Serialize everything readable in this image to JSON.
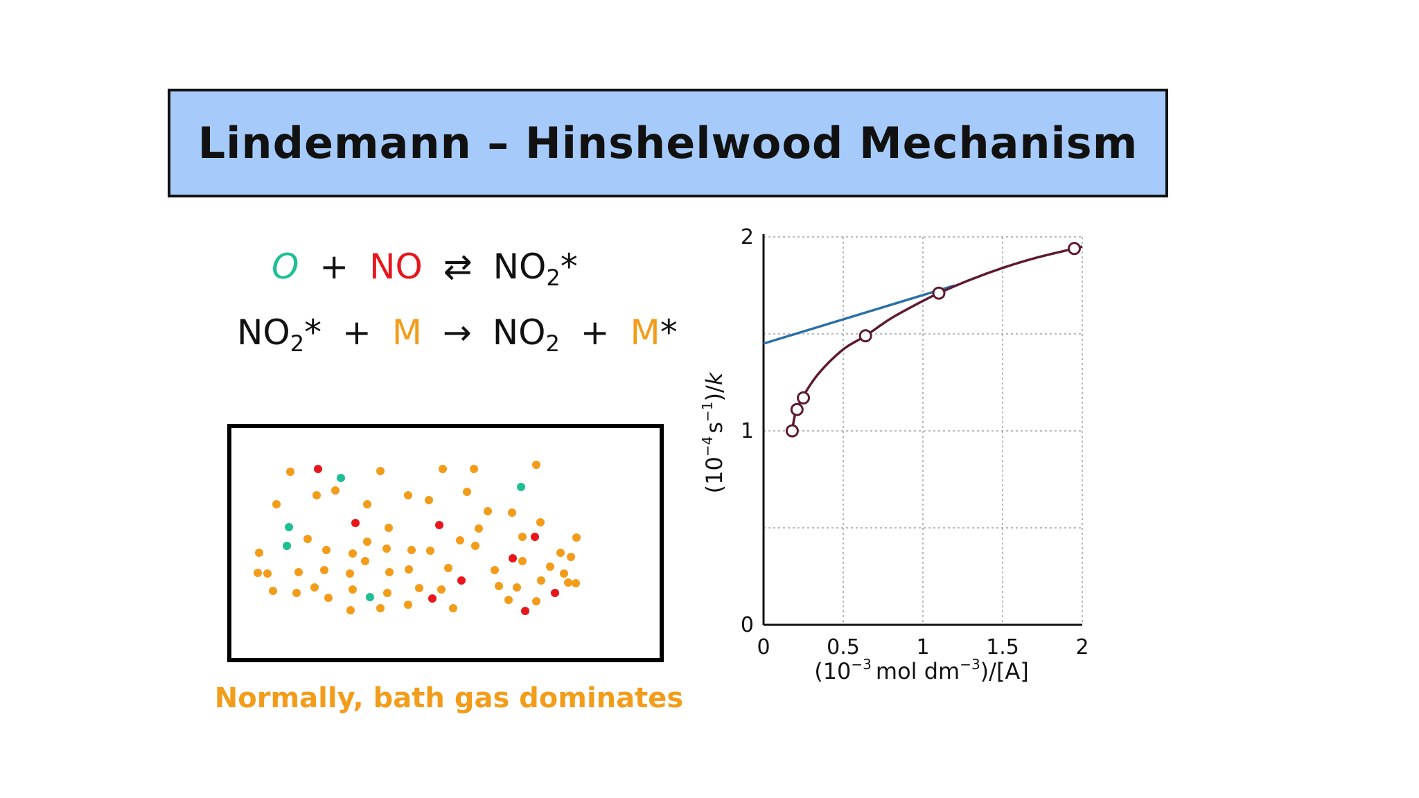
{
  "slide": {
    "title": "Lindemann – Hinshelwood Mechanism",
    "caption": "Normally, bath gas dominates"
  },
  "colors": {
    "title_bg": "#a6cbfa",
    "O": "#1fbf95",
    "NO": "#e8161b",
    "M": "#f39c1a",
    "text": "#111111",
    "curve": "#5e1a2e",
    "line": "#2a6fa8",
    "grid": "#9aa3ad"
  },
  "equations": {
    "eq1": {
      "O": "O",
      "plus1": "+",
      "NO": "NO",
      "arrow": "⇄",
      "product": "NO",
      "product_sub": "2",
      "product_sup": "*"
    },
    "eq2": {
      "reactant": "NO",
      "reactant_sub": "2",
      "reactant_sup": "*",
      "plus1": "+",
      "M": "M",
      "arrow": "→",
      "product": "NO",
      "product_sub": "2",
      "plus2": "+",
      "M2": "M",
      "M2_sup": "*"
    }
  },
  "particles": {
    "legend": {
      "O": "green",
      "NO": "red",
      "M": "orange"
    },
    "counts": {
      "O": 6,
      "NO": 11,
      "M": 66
    }
  },
  "chart_data": {
    "type": "scatter",
    "xlabel_parts": {
      "a": "(10",
      "a_sup": "−3",
      "b": "mol dm",
      "b_sup": "−3",
      "c": ")/[A]"
    },
    "ylabel_parts": {
      "a": "(10",
      "a_sup": "−4",
      "b": "s",
      "b_sup": "−1",
      "c": ")/",
      "k": "k"
    },
    "xlim": [
      0,
      2
    ],
    "ylim": [
      0,
      2
    ],
    "x_ticks": [
      "0",
      "0.5",
      "1",
      "1.5",
      "2"
    ],
    "y_ticks": [
      "0",
      "1",
      "2"
    ],
    "x_tick_values": [
      0,
      0.5,
      1,
      1.5,
      2
    ],
    "y_tick_values": [
      0,
      1,
      2
    ],
    "grid": true,
    "series": [
      {
        "kind": "points_with_curve",
        "x": [
          0.18,
          0.21,
          0.25,
          0.64,
          1.1,
          1.95
        ],
        "y": [
          1.0,
          1.11,
          1.17,
          1.49,
          1.71,
          1.94
        ],
        "curve_x": [
          0.18,
          0.2,
          0.25,
          0.35,
          0.5,
          0.64,
          0.8,
          1.0,
          1.1,
          1.3,
          1.5,
          1.7,
          1.95,
          2.0
        ],
        "curve_y": [
          1.0,
          1.09,
          1.18,
          1.3,
          1.42,
          1.49,
          1.58,
          1.67,
          1.71,
          1.78,
          1.84,
          1.89,
          1.94,
          1.95
        ]
      },
      {
        "kind": "line",
        "x": [
          0.0,
          1.2
        ],
        "y": [
          1.45,
          1.75
        ]
      }
    ]
  }
}
